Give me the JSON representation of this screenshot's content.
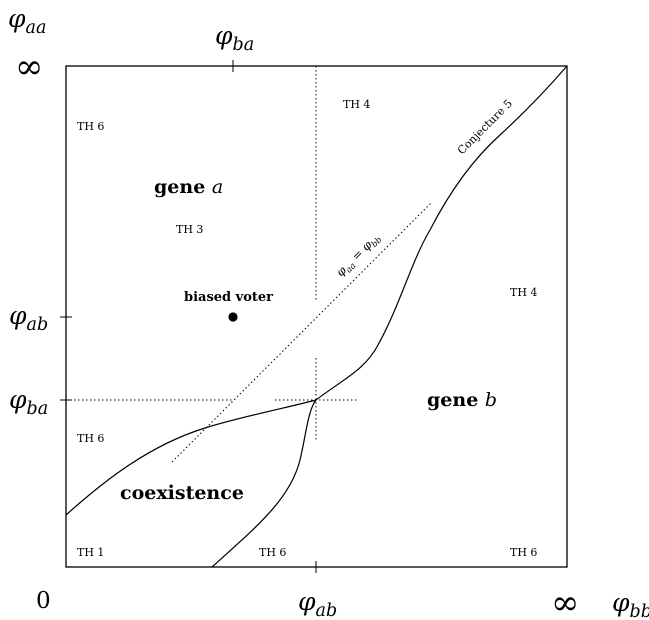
{
  "axes": {
    "y_axis_label": {
      "base": "φ",
      "sub": "aa"
    },
    "x_axis_label": {
      "base": "φ",
      "sub": "bb"
    },
    "origin": "0",
    "infinity": "∞",
    "top_tick": {
      "base": "φ",
      "sub": "ba"
    },
    "bottom_tick": {
      "base": "φ",
      "sub": "ab"
    },
    "left_tick_ab": {
      "base": "φ",
      "sub": "ab"
    },
    "left_tick_ba": {
      "base": "φ",
      "sub": "ba"
    }
  },
  "regions": {
    "gene_a": {
      "bold": "gene ",
      "italic": "a"
    },
    "gene_b": {
      "bold": "gene ",
      "italic": "b"
    },
    "coexistence": "coexistence",
    "biased_voter": "biased voter"
  },
  "theorem_labels": {
    "th6_top_left": "TH 6",
    "th4_top": "TH 4",
    "th3": "TH 3",
    "th4_right": "TH 4",
    "th6_mid_left": "TH 6",
    "th1": "TH 1",
    "th6_bottom_mid": "TH 6",
    "th6_bottom_right": "TH 6"
  },
  "annotations": {
    "conjecture": "Conjecture 5",
    "diagonal": {
      "base_a": "φ",
      "sub_a": "aa",
      "eq": " = ",
      "base_b": "φ",
      "sub_b": "bb"
    }
  }
}
